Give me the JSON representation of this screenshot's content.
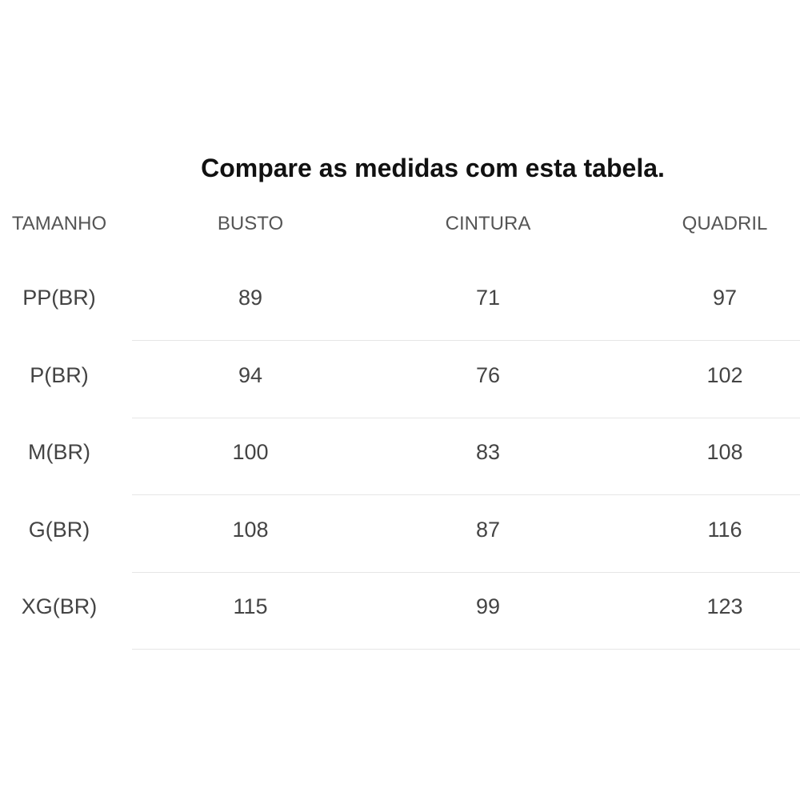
{
  "title": "Compare as medidas com esta tabela.",
  "table": {
    "header": [
      "TAMANHO",
      "BUSTO",
      "CINTURA",
      "QUADRIL"
    ],
    "rows": [
      [
        "PP(BR)",
        "89",
        "71",
        "97"
      ],
      [
        "P(BR)",
        "94",
        "76",
        "102"
      ],
      [
        "M(BR)",
        "100",
        "83",
        "108"
      ],
      [
        "G(BR)",
        "108",
        "87",
        "116"
      ],
      [
        "XG(BR)",
        "115",
        "99",
        "123"
      ]
    ]
  }
}
